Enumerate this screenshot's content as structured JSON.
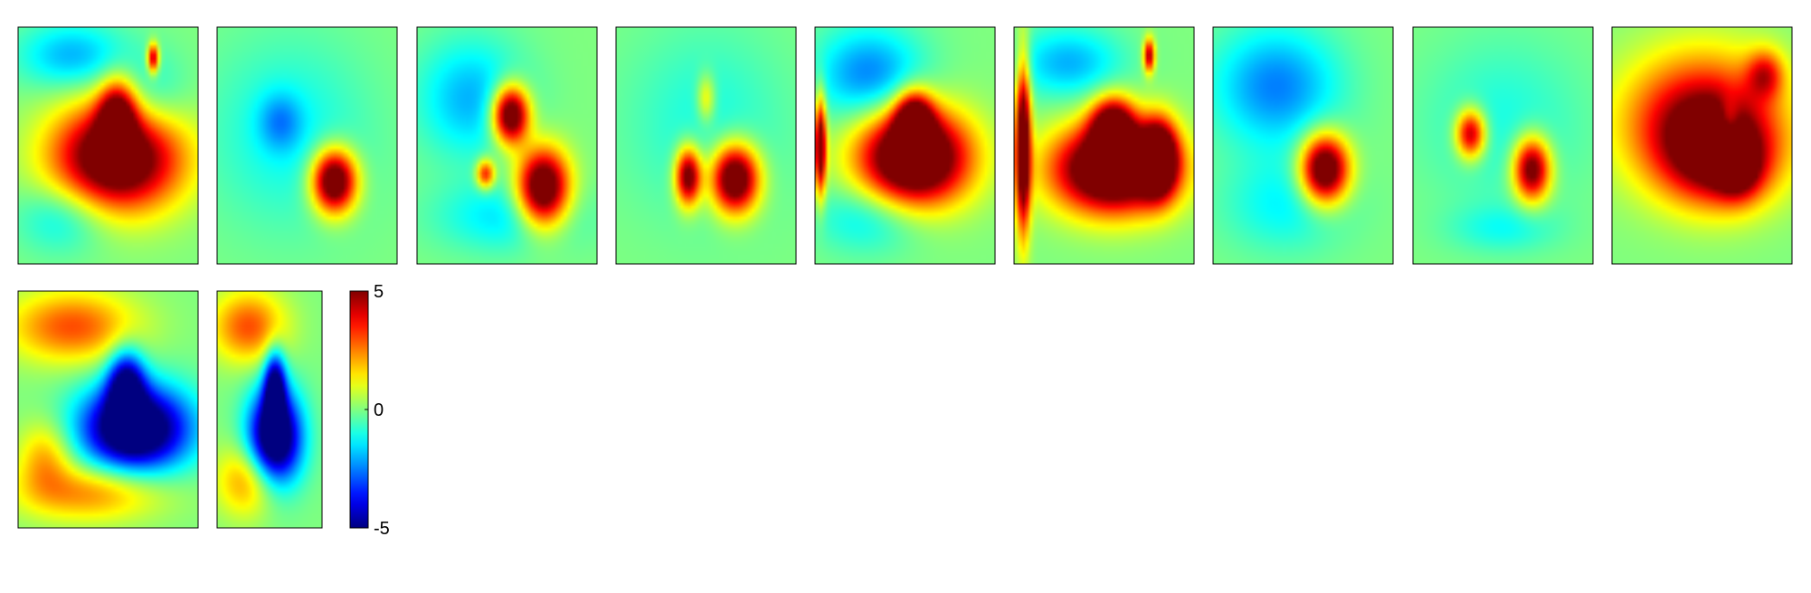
{
  "chart_data": {
    "type": "heatmap",
    "title": "",
    "xlabel": "",
    "ylabel": "",
    "colormap": "jet",
    "clim": [
      -5,
      5
    ],
    "background_value": 0,
    "colorbar": {
      "ticks": [
        5,
        0,
        -5
      ],
      "tick_labels": [
        "5",
        "0",
        "-5"
      ]
    },
    "panels": [
      {
        "name": "",
        "blobs": [
          {
            "cx": 0.55,
            "cy": 0.55,
            "rx": 0.35,
            "ry": 0.22,
            "value": 7
          },
          {
            "cx": 0.55,
            "cy": 0.38,
            "rx": 0.1,
            "ry": 0.15,
            "value": 5
          },
          {
            "cx": 0.3,
            "cy": 0.12,
            "rx": 0.3,
            "ry": 0.14,
            "value": -2
          },
          {
            "cx": 0.25,
            "cy": 0.8,
            "rx": 0.25,
            "ry": 0.15,
            "value": -1.5
          },
          {
            "cx": 0.75,
            "cy": 0.3,
            "rx": 0.2,
            "ry": 0.18,
            "value": -1.2
          },
          {
            "cx": 0.75,
            "cy": 0.13,
            "rx": 0.03,
            "ry": 0.06,
            "value": 5
          }
        ]
      },
      {
        "name": "",
        "blobs": [
          {
            "cx": 0.65,
            "cy": 0.65,
            "rx": 0.12,
            "ry": 0.13,
            "value": 7
          },
          {
            "cx": 0.4,
            "cy": 0.45,
            "rx": 0.45,
            "ry": 0.4,
            "value": -1.2
          },
          {
            "cx": 0.35,
            "cy": 0.4,
            "rx": 0.12,
            "ry": 0.12,
            "value": -1.5
          }
        ]
      },
      {
        "name": "",
        "blobs": [
          {
            "cx": 0.52,
            "cy": 0.37,
            "rx": 0.1,
            "ry": 0.12,
            "value": 7
          },
          {
            "cx": 0.7,
            "cy": 0.68,
            "rx": 0.14,
            "ry": 0.16,
            "value": 7
          },
          {
            "cx": 0.38,
            "cy": 0.62,
            "rx": 0.05,
            "ry": 0.06,
            "value": 4
          },
          {
            "cx": 0.3,
            "cy": 0.3,
            "rx": 0.3,
            "ry": 0.25,
            "value": -2
          },
          {
            "cx": 0.5,
            "cy": 0.8,
            "rx": 0.4,
            "ry": 0.15,
            "value": -1.5
          }
        ]
      },
      {
        "name": "",
        "blobs": [
          {
            "cx": 0.4,
            "cy": 0.63,
            "rx": 0.07,
            "ry": 0.12,
            "value": 6
          },
          {
            "cx": 0.66,
            "cy": 0.64,
            "rx": 0.13,
            "ry": 0.14,
            "value": 7
          },
          {
            "cx": 0.5,
            "cy": 0.4,
            "rx": 0.45,
            "ry": 0.4,
            "value": -1
          },
          {
            "cx": 0.5,
            "cy": 0.3,
            "rx": 0.05,
            "ry": 0.1,
            "value": 2
          }
        ]
      },
      {
        "name": "",
        "blobs": [
          {
            "cx": 0.55,
            "cy": 0.55,
            "rx": 0.3,
            "ry": 0.2,
            "value": 8
          },
          {
            "cx": 0.55,
            "cy": 0.4,
            "rx": 0.1,
            "ry": 0.12,
            "value": 6
          },
          {
            "cx": 0.3,
            "cy": 0.2,
            "rx": 0.3,
            "ry": 0.2,
            "value": -2.5
          },
          {
            "cx": 0.03,
            "cy": 0.5,
            "rx": 0.03,
            "ry": 0.2,
            "value": 6
          },
          {
            "cx": 0.3,
            "cy": 0.8,
            "rx": 0.3,
            "ry": 0.15,
            "value": -1.5
          }
        ]
      },
      {
        "name": "",
        "blobs": [
          {
            "cx": 0.55,
            "cy": 0.6,
            "rx": 0.33,
            "ry": 0.18,
            "value": 8
          },
          {
            "cx": 0.55,
            "cy": 0.42,
            "rx": 0.12,
            "ry": 0.12,
            "value": 6
          },
          {
            "cx": 0.8,
            "cy": 0.55,
            "rx": 0.1,
            "ry": 0.15,
            "value": 7
          },
          {
            "cx": 0.05,
            "cy": 0.5,
            "rx": 0.04,
            "ry": 0.35,
            "value": 7
          },
          {
            "cx": 0.3,
            "cy": 0.15,
            "rx": 0.3,
            "ry": 0.15,
            "value": -2
          },
          {
            "cx": 0.75,
            "cy": 0.12,
            "rx": 0.03,
            "ry": 0.07,
            "value": 5
          }
        ]
      },
      {
        "name": "",
        "blobs": [
          {
            "cx": 0.62,
            "cy": 0.6,
            "rx": 0.13,
            "ry": 0.14,
            "value": 7
          },
          {
            "cx": 0.35,
            "cy": 0.25,
            "rx": 0.35,
            "ry": 0.25,
            "value": -2.5
          },
          {
            "cx": 0.4,
            "cy": 0.75,
            "rx": 0.35,
            "ry": 0.2,
            "value": -1.3
          }
        ]
      },
      {
        "name": "",
        "blobs": [
          {
            "cx": 0.32,
            "cy": 0.45,
            "rx": 0.08,
            "ry": 0.1,
            "value": 5
          },
          {
            "cx": 0.66,
            "cy": 0.6,
            "rx": 0.1,
            "ry": 0.13,
            "value": 6
          },
          {
            "cx": 0.5,
            "cy": 0.4,
            "rx": 0.45,
            "ry": 0.35,
            "value": -1
          },
          {
            "cx": 0.5,
            "cy": 0.85,
            "rx": 0.3,
            "ry": 0.1,
            "value": -1
          }
        ]
      },
      {
        "name": "",
        "blobs": [
          {
            "cx": 0.5,
            "cy": 0.4,
            "rx": 0.42,
            "ry": 0.28,
            "value": 5
          },
          {
            "cx": 0.6,
            "cy": 0.55,
            "rx": 0.3,
            "ry": 0.2,
            "value": 4
          },
          {
            "cx": 0.7,
            "cy": 0.6,
            "rx": 0.12,
            "ry": 0.12,
            "value": 3
          },
          {
            "cx": 0.65,
            "cy": 0.4,
            "rx": 0.06,
            "ry": 0.1,
            "value": -2
          },
          {
            "cx": 0.85,
            "cy": 0.2,
            "rx": 0.1,
            "ry": 0.1,
            "value": 3
          }
        ]
      },
      {
        "name": "",
        "blobs": [
          {
            "cx": 0.65,
            "cy": 0.58,
            "rx": 0.3,
            "ry": 0.18,
            "value": -7
          },
          {
            "cx": 0.6,
            "cy": 0.4,
            "rx": 0.1,
            "ry": 0.15,
            "value": -5
          },
          {
            "cx": 0.3,
            "cy": 0.15,
            "rx": 0.35,
            "ry": 0.15,
            "value": 3
          },
          {
            "cx": 0.4,
            "cy": 0.85,
            "rx": 0.4,
            "ry": 0.12,
            "value": 2.5
          },
          {
            "cx": 0.15,
            "cy": 0.7,
            "rx": 0.15,
            "ry": 0.15,
            "value": 2
          }
        ]
      },
      {
        "name": "",
        "blobs": [
          {
            "cx": 0.55,
            "cy": 0.62,
            "rx": 0.25,
            "ry": 0.2,
            "value": -7
          },
          {
            "cx": 0.55,
            "cy": 0.4,
            "rx": 0.1,
            "ry": 0.15,
            "value": -5
          },
          {
            "cx": 0.3,
            "cy": 0.15,
            "rx": 0.35,
            "ry": 0.15,
            "value": 3
          },
          {
            "cx": 0.3,
            "cy": 0.8,
            "rx": 0.3,
            "ry": 0.15,
            "value": 2.5
          }
        ]
      }
    ]
  }
}
